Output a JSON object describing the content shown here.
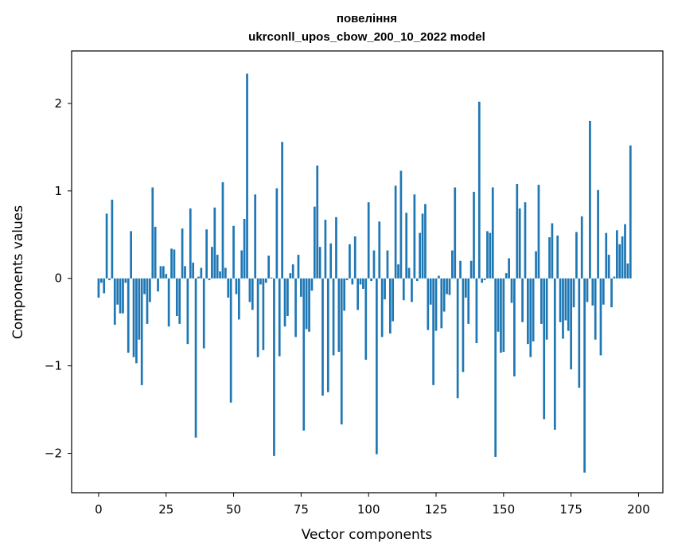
{
  "chart_data": {
    "type": "bar",
    "title_line1": "повеління",
    "title_line2": "ukrconll_upos_cbow_200_10_2022 model",
    "xlabel": "Vector components",
    "ylabel": "Components values",
    "xlim": [
      -10,
      209
    ],
    "ylim": [
      -2.45,
      2.6
    ],
    "xticks": [
      0,
      25,
      50,
      75,
      100,
      125,
      150,
      175,
      200
    ],
    "xtick_labels": [
      "0",
      "25",
      "50",
      "75",
      "100",
      "125",
      "150",
      "175",
      "200"
    ],
    "yticks": [
      -2,
      -1,
      0,
      1,
      2
    ],
    "ytick_labels": [
      "−2",
      "−1",
      "0",
      "1",
      "2"
    ],
    "bar_color": "#1f77b4",
    "values": [
      -0.22,
      -0.05,
      -0.17,
      0.74,
      -0.02,
      0.9,
      -0.53,
      -0.3,
      -0.4,
      -0.4,
      -0.05,
      -0.85,
      0.54,
      -0.9,
      -0.97,
      -0.7,
      -1.22,
      -0.18,
      -0.52,
      -0.27,
      1.04,
      0.59,
      -0.15,
      0.14,
      0.14,
      0.05,
      -0.55,
      0.34,
      0.33,
      -0.43,
      -0.52,
      0.57,
      0.14,
      -0.75,
      0.8,
      0.18,
      -1.82,
      0.02,
      0.12,
      -0.8,
      0.56,
      -0.02,
      0.36,
      0.81,
      0.27,
      0.08,
      1.1,
      0.12,
      -0.22,
      -1.42,
      0.6,
      -0.18,
      -0.47,
      0.32,
      0.68,
      2.34,
      -0.27,
      -0.36,
      0.96,
      -0.9,
      -0.07,
      -0.82,
      -0.05,
      0.26,
      0.01,
      -2.03,
      1.03,
      -0.89,
      1.56,
      -0.55,
      -0.43,
      0.06,
      0.16,
      -0.67,
      0.27,
      -0.21,
      -1.74,
      -0.58,
      -0.61,
      -0.14,
      0.82,
      1.29,
      0.36,
      -1.34,
      0.67,
      -1.3,
      0.4,
      -0.88,
      0.7,
      -0.84,
      -1.67,
      -0.37,
      -0.02,
      0.39,
      -0.07,
      0.48,
      -0.36,
      -0.07,
      -0.12,
      -0.93,
      0.87,
      -0.03,
      0.32,
      -2.01,
      0.65,
      -0.67,
      -0.24,
      0.32,
      -0.63,
      -0.49,
      1.06,
      0.16,
      1.23,
      -0.25,
      0.75,
      0.12,
      -0.27,
      0.96,
      -0.03,
      0.52,
      0.74,
      0.85,
      -0.59,
      -0.3,
      -1.22,
      -0.6,
      0.03,
      -0.57,
      -0.38,
      -0.18,
      -0.19,
      0.32,
      1.04,
      -1.37,
      0.2,
      -1.07,
      -0.22,
      -0.52,
      0.2,
      0.99,
      -0.74,
      2.02,
      -0.05,
      -0.02,
      0.54,
      0.52,
      1.04,
      -2.04,
      -0.61,
      -0.85,
      -0.84,
      0.06,
      0.23,
      -0.28,
      -1.12,
      1.08,
      0.8,
      -0.5,
      0.87,
      -0.75,
      -0.9,
      -0.72,
      0.31,
      1.07,
      -0.52,
      -1.61,
      -0.7,
      0.47,
      0.63,
      -1.73,
      0.49,
      -0.5,
      -0.69,
      -0.48,
      -0.6,
      -1.04,
      -0.33,
      0.53,
      -1.25,
      0.71,
      -2.22,
      -0.27,
      1.8,
      -0.31,
      -0.7,
      1.01,
      -0.88,
      -0.3,
      0.52,
      0.27,
      -0.33,
      0.02,
      0.55,
      0.39,
      0.48,
      0.62,
      0.17,
      1.52
    ]
  }
}
